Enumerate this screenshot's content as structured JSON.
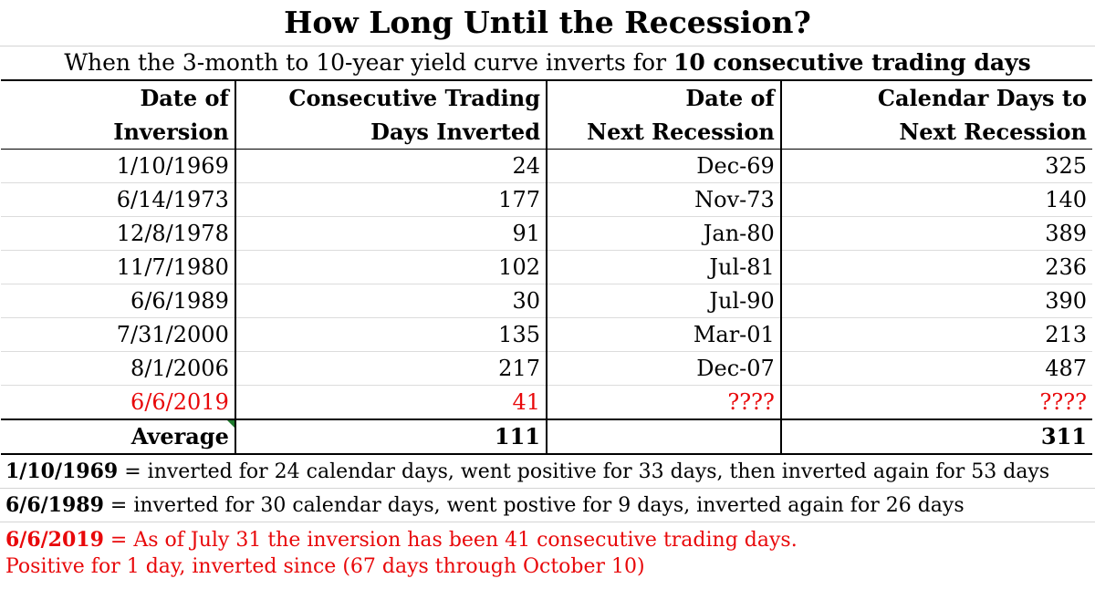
{
  "title": "How Long Until the Recession?",
  "subtitle": {
    "prefix": "When the 3-month to 10-year yield curve inverts for",
    "bold": "10 consecutive trading days"
  },
  "columns": [
    {
      "line1": "Date of",
      "line2": "Inversion"
    },
    {
      "line1": "Consecutive Trading",
      "line2": "Days Inverted"
    },
    {
      "line1": "Date of",
      "line2": "Next Recession"
    },
    {
      "line1": "Calendar Days to",
      "line2": "Next Recession"
    }
  ],
  "rows": [
    {
      "date": "1/10/1969",
      "days": "24",
      "recession": "Dec-69",
      "cal": "325"
    },
    {
      "date": "6/14/1973",
      "days": "177",
      "recession": "Nov-73",
      "cal": "140"
    },
    {
      "date": "12/8/1978",
      "days": "91",
      "recession": "Jan-80",
      "cal": "389"
    },
    {
      "date": "11/7/1980",
      "days": "102",
      "recession": "Jul-81",
      "cal": "236"
    },
    {
      "date": "6/6/1989",
      "days": "30",
      "recession": "Jul-90",
      "cal": "390"
    },
    {
      "date": "7/31/2000",
      "days": "135",
      "recession": "Mar-01",
      "cal": "213"
    },
    {
      "date": "8/1/2006",
      "days": "217",
      "recession": "Dec-07",
      "cal": "487"
    },
    {
      "date": "6/6/2019",
      "days": "41",
      "recession": "????",
      "cal": "????"
    }
  ],
  "average": {
    "label": "Average",
    "days": "111",
    "recession": "",
    "cal": "311"
  },
  "notes": {
    "n1": {
      "date": "1/10/1969",
      "text": " = inverted for 24 calendar days, went positive for 33 days, then inverted again for 53 days"
    },
    "n2": {
      "date": "6/6/1989",
      "text": " = inverted for 30 calendar days, went postive for 9 days, inverted again for 26 days"
    },
    "n3": {
      "date": "6/6/2019",
      "text": " = As of July 31 the inversion has been 41 consecutive trading days.",
      "line2": "Positive for 1 day, inverted since (67 days through October 10)"
    }
  },
  "colors": {
    "highlight": "#e8080a",
    "grid": "#000000",
    "comment_marker": "#1d7a2c"
  }
}
